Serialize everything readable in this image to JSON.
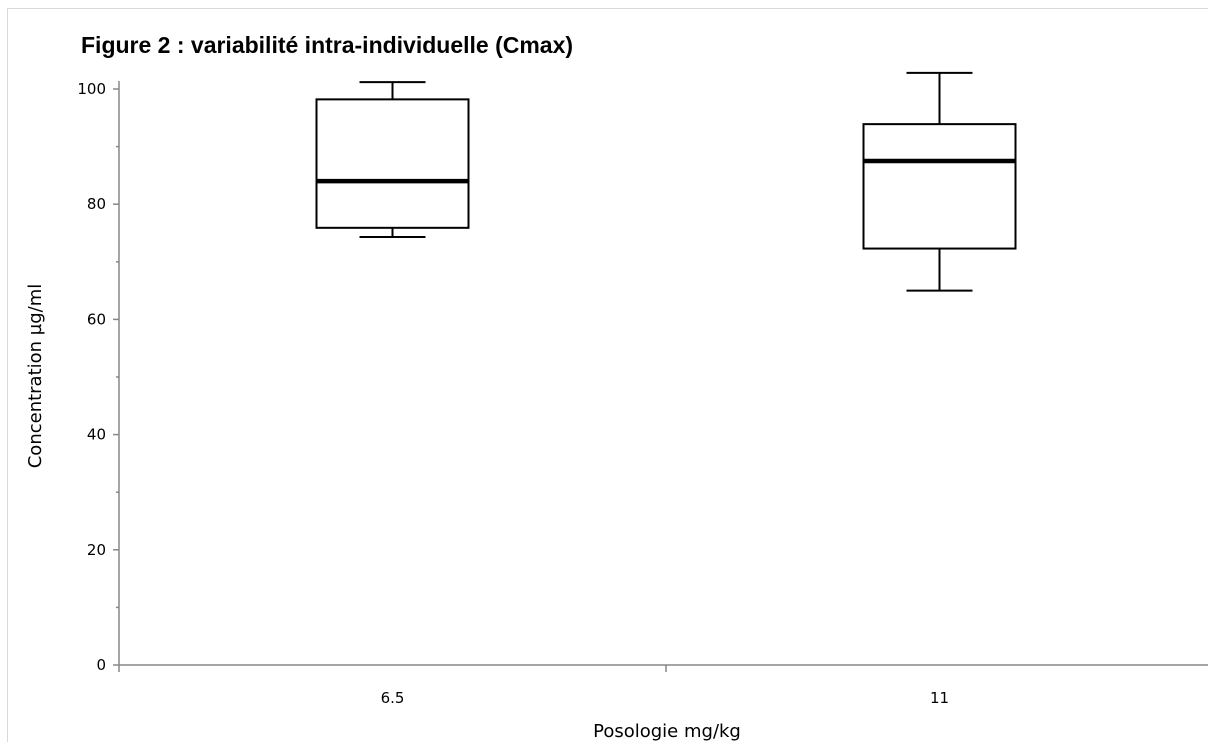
{
  "chart_data": {
    "type": "box",
    "title": "Figure 2 : variabilité intra-individuelle (Cmax)",
    "xlabel": "Posologie mg/kg",
    "ylabel": "Concentration µg/ml",
    "ylim": [
      0,
      100
    ],
    "y_ticks": [
      0,
      20,
      40,
      60,
      80,
      100
    ],
    "y_tick_labels": [
      "0",
      "20",
      "40",
      "60",
      "80",
      "100"
    ],
    "categories": [
      "6.5",
      "11"
    ],
    "boxes": [
      {
        "category": "6.5",
        "min": 74.3,
        "q1": 75.9,
        "median": 84.0,
        "q3": 98.2,
        "max": 101.2
      },
      {
        "category": "11",
        "min": 65.0,
        "q1": 72.3,
        "median": 87.5,
        "q3": 93.9,
        "max": 102.8
      }
    ],
    "grid": false,
    "legend": "none"
  }
}
